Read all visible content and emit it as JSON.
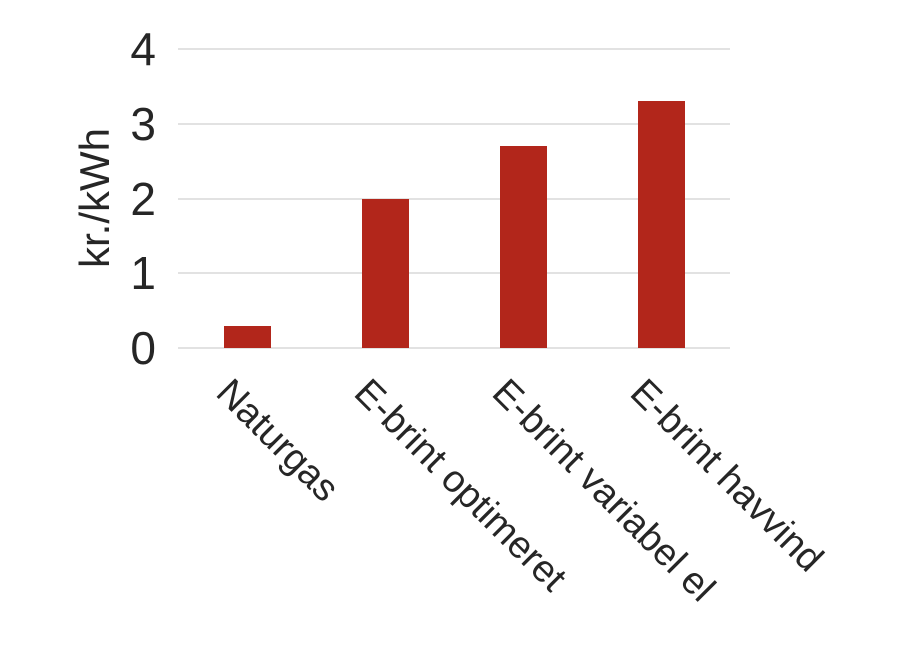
{
  "chart_data": {
    "type": "bar",
    "title": "",
    "categories": [
      "Naturgas",
      "E-brint optimeret",
      "E-brint variabel el",
      "E-brint havvind"
    ],
    "values": [
      0.3,
      2.0,
      2.7,
      3.3
    ],
    "xlabel": "",
    "ylabel": "kr./kWh",
    "yticks": [
      0,
      1,
      2,
      3,
      4
    ],
    "ylim": [
      0,
      4
    ],
    "grid": "horizontal",
    "legend": "none",
    "bar_color": "#B2261B",
    "gridline_color": "#E2E2E2",
    "text_color": "#262626",
    "background": "#FFFFFF"
  }
}
